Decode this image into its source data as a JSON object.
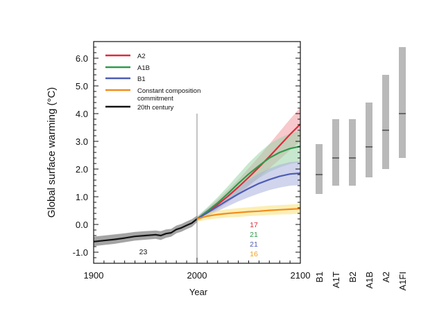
{
  "chart_data": {
    "type": "line",
    "xlabel": "Year",
    "ylabel": "Global surface warming (°C)",
    "xlim": [
      1900,
      2100
    ],
    "ylim": [
      -1.4,
      6.6
    ],
    "x_ticks": [
      "1900",
      "2000",
      "2100"
    ],
    "y_ticks": [
      "-1.0",
      "0.0",
      "1.0",
      "2.0",
      "3.0",
      "4.0",
      "5.0",
      "6.0"
    ],
    "divider_year": 2000,
    "legend": {
      "position": "top-left",
      "entries": [
        {
          "label": "A2",
          "color": "#dd2b3c"
        },
        {
          "label": "A1B",
          "color": "#2e9a4a"
        },
        {
          "label": "B1",
          "color": "#4d5db3"
        },
        {
          "label": "Constant composition\ncommitment",
          "color": "#f28c1c"
        },
        {
          "label": "20th century",
          "color": "#111111"
        }
      ]
    },
    "series": [
      {
        "name": "20th century",
        "color": "#111111",
        "band_color": "#9a9a9a",
        "x": [
          1900,
          1910,
          1920,
          1930,
          1940,
          1950,
          1960,
          1965,
          1970,
          1975,
          1980,
          1985,
          1990,
          1995,
          2000
        ],
        "y": [
          -0.62,
          -0.58,
          -0.54,
          -0.49,
          -0.43,
          -0.4,
          -0.37,
          -0.4,
          -0.33,
          -0.3,
          -0.18,
          -0.12,
          -0.03,
          0.05,
          0.2
        ],
        "lower": [
          -0.78,
          -0.74,
          -0.7,
          -0.64,
          -0.58,
          -0.55,
          -0.52,
          -0.56,
          -0.48,
          -0.44,
          -0.32,
          -0.26,
          -0.17,
          -0.09,
          0.08
        ],
        "upper": [
          -0.44,
          -0.4,
          -0.36,
          -0.32,
          -0.27,
          -0.24,
          -0.22,
          -0.24,
          -0.18,
          -0.16,
          -0.04,
          0.02,
          0.11,
          0.19,
          0.32
        ]
      },
      {
        "name": "A2",
        "color": "#dd2b3c",
        "band_color": "#f09aa2",
        "x": [
          2000,
          2010,
          2020,
          2030,
          2040,
          2050,
          2060,
          2070,
          2080,
          2090,
          2100
        ],
        "y": [
          0.2,
          0.45,
          0.72,
          1.02,
          1.35,
          1.7,
          2.07,
          2.45,
          2.85,
          3.25,
          3.62
        ],
        "lower": [
          0.12,
          0.32,
          0.55,
          0.8,
          1.08,
          1.38,
          1.7,
          2.02,
          2.35,
          2.68,
          3.0
        ],
        "upper": [
          0.28,
          0.58,
          0.9,
          1.25,
          1.62,
          2.03,
          2.45,
          2.9,
          3.35,
          3.8,
          4.22
        ]
      },
      {
        "name": "A1B",
        "color": "#2e9a4a",
        "band_color": "#9bd3a8",
        "x": [
          2000,
          2010,
          2020,
          2030,
          2040,
          2050,
          2060,
          2070,
          2080,
          2090,
          2100
        ],
        "y": [
          0.2,
          0.48,
          0.78,
          1.12,
          1.48,
          1.82,
          2.12,
          2.4,
          2.6,
          2.74,
          2.82
        ],
        "lower": [
          0.12,
          0.34,
          0.58,
          0.86,
          1.15,
          1.42,
          1.67,
          1.9,
          2.06,
          2.18,
          2.25
        ],
        "upper": [
          0.28,
          0.62,
          0.98,
          1.38,
          1.8,
          2.22,
          2.58,
          2.9,
          3.12,
          3.28,
          3.38
        ]
      },
      {
        "name": "B1",
        "color": "#4d5db3",
        "band_color": "#aab1dd",
        "x": [
          2000,
          2010,
          2020,
          2030,
          2040,
          2050,
          2060,
          2070,
          2080,
          2090,
          2100
        ],
        "y": [
          0.2,
          0.42,
          0.65,
          0.88,
          1.1,
          1.3,
          1.48,
          1.62,
          1.74,
          1.82,
          1.85
        ],
        "lower": [
          0.12,
          0.3,
          0.48,
          0.66,
          0.83,
          0.98,
          1.12,
          1.24,
          1.33,
          1.4,
          1.42
        ],
        "upper": [
          0.28,
          0.55,
          0.82,
          1.1,
          1.37,
          1.62,
          1.84,
          2.02,
          2.16,
          2.25,
          2.28
        ]
      },
      {
        "name": "Constant composition commitment",
        "color": "#f28c1c",
        "band_color": "#f7e27a",
        "x": [
          2000,
          2010,
          2020,
          2030,
          2040,
          2050,
          2060,
          2070,
          2080,
          2090,
          2100
        ],
        "y": [
          0.2,
          0.3,
          0.36,
          0.4,
          0.43,
          0.46,
          0.48,
          0.51,
          0.53,
          0.55,
          0.57
        ],
        "lower": [
          0.1,
          0.17,
          0.22,
          0.25,
          0.27,
          0.3,
          0.32,
          0.34,
          0.36,
          0.37,
          0.39
        ],
        "upper": [
          0.3,
          0.43,
          0.5,
          0.55,
          0.59,
          0.62,
          0.65,
          0.68,
          0.7,
          0.72,
          0.75
        ]
      }
    ],
    "model_counts": [
      {
        "text": "17",
        "color": "#dd2b3c"
      },
      {
        "text": "21",
        "color": "#2e9a4a"
      },
      {
        "text": "21",
        "color": "#4d5db3"
      },
      {
        "text": "16",
        "color": "#f2a01c"
      }
    ],
    "model_count_20th": {
      "text": "23",
      "x": 1948,
      "y": -1.08
    },
    "scenario_ranges": [
      {
        "label": "B1",
        "low": 1.1,
        "high": 2.9,
        "best": 1.8
      },
      {
        "label": "A1T",
        "low": 1.4,
        "high": 3.8,
        "best": 2.4
      },
      {
        "label": "B2",
        "low": 1.4,
        "high": 3.8,
        "best": 2.4
      },
      {
        "label": "A1B",
        "low": 1.7,
        "high": 4.4,
        "best": 2.8
      },
      {
        "label": "A2",
        "low": 2.0,
        "high": 5.4,
        "best": 3.4
      },
      {
        "label": "A1FI",
        "low": 2.4,
        "high": 6.4,
        "best": 4.0
      }
    ]
  }
}
